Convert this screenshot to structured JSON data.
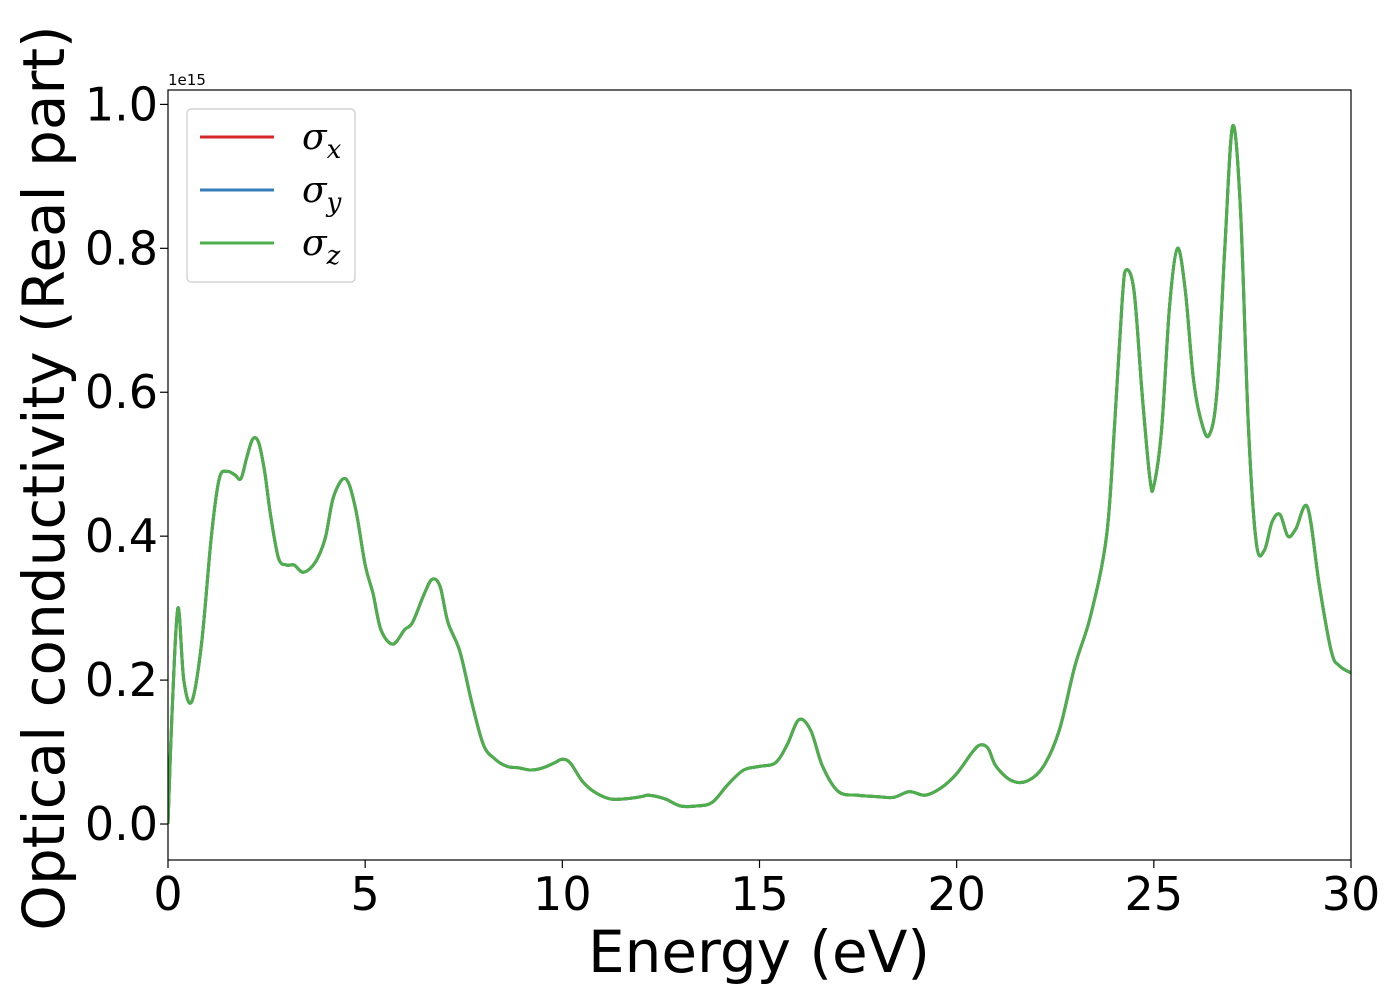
{
  "chart_data": {
    "type": "line",
    "xlabel": "Energy (eV)",
    "ylabel": "Optical conductivity (Real part)",
    "y_offset_label": "1e15",
    "xlim": [
      0,
      30
    ],
    "ylim": [
      -0.05,
      1.02
    ],
    "y_scale_factor": 1000000000000000.0,
    "grid": false,
    "legend_placement": "top-left",
    "x_ticks": [
      0,
      5,
      10,
      15,
      20,
      25,
      30
    ],
    "x_tick_labels": [
      "0",
      "5",
      "10",
      "15",
      "20",
      "25",
      "30"
    ],
    "y_ticks": [
      0.0,
      0.2,
      0.4,
      0.6,
      0.8,
      1.0
    ],
    "y_tick_labels": [
      "0.0",
      "0.2",
      "0.4",
      "0.6",
      "0.8",
      "1.0"
    ],
    "series": [
      {
        "name": "σx",
        "symbol": "σ",
        "subscript": "x",
        "color": "#d62728"
      },
      {
        "name": "σy",
        "symbol": "σ",
        "subscript": "y",
        "color": "#377eb8"
      },
      {
        "name": "σz",
        "symbol": "σ",
        "subscript": "z",
        "color": "#4daf4a"
      }
    ],
    "x": [
      0,
      0.1,
      0.25,
      0.4,
      0.6,
      0.85,
      1.1,
      1.3,
      1.5,
      1.7,
      1.85,
      2.0,
      2.15,
      2.3,
      2.45,
      2.6,
      2.8,
      3.0,
      3.2,
      3.4,
      3.6,
      3.8,
      4.0,
      4.2,
      4.5,
      4.75,
      5.0,
      5.2,
      5.4,
      5.7,
      6.0,
      6.2,
      6.5,
      6.7,
      6.9,
      7.1,
      7.4,
      7.7,
      8.0,
      8.3,
      8.6,
      8.9,
      9.2,
      9.5,
      9.8,
      10.0,
      10.2,
      10.5,
      10.8,
      11.2,
      11.6,
      12.0,
      12.2,
      12.6,
      13.0,
      13.4,
      13.8,
      14.2,
      14.6,
      15.0,
      15.4,
      15.7,
      16.0,
      16.3,
      16.6,
      17.0,
      17.5,
      18.0,
      18.4,
      18.8,
      19.2,
      19.6,
      20.0,
      20.4,
      20.6,
      20.8,
      21.0,
      21.4,
      21.8,
      22.2,
      22.6,
      23.0,
      23.4,
      23.8,
      24.0,
      24.2,
      24.3,
      24.5,
      24.7,
      24.9,
      25.0,
      25.2,
      25.4,
      25.6,
      25.8,
      26.0,
      26.2,
      26.4,
      26.6,
      26.8,
      27.0,
      27.2,
      27.4,
      27.6,
      27.8,
      28.0,
      28.2,
      28.4,
      28.6,
      28.9,
      29.2,
      29.5,
      29.7,
      30.0
    ],
    "values": [
      0.0,
      0.15,
      0.3,
      0.2,
      0.17,
      0.25,
      0.4,
      0.48,
      0.49,
      0.485,
      0.48,
      0.51,
      0.535,
      0.53,
      0.49,
      0.43,
      0.37,
      0.36,
      0.36,
      0.35,
      0.355,
      0.37,
      0.4,
      0.455,
      0.48,
      0.44,
      0.36,
      0.32,
      0.27,
      0.25,
      0.27,
      0.28,
      0.32,
      0.34,
      0.33,
      0.28,
      0.24,
      0.17,
      0.11,
      0.09,
      0.08,
      0.078,
      0.075,
      0.078,
      0.085,
      0.09,
      0.085,
      0.06,
      0.045,
      0.035,
      0.035,
      0.038,
      0.04,
      0.035,
      0.025,
      0.025,
      0.03,
      0.055,
      0.075,
      0.08,
      0.085,
      0.11,
      0.145,
      0.13,
      0.08,
      0.045,
      0.04,
      0.038,
      0.037,
      0.045,
      0.04,
      0.05,
      0.07,
      0.1,
      0.11,
      0.105,
      0.08,
      0.06,
      0.06,
      0.08,
      0.13,
      0.22,
      0.29,
      0.4,
      0.55,
      0.73,
      0.77,
      0.74,
      0.6,
      0.48,
      0.47,
      0.55,
      0.72,
      0.8,
      0.74,
      0.62,
      0.56,
      0.54,
      0.6,
      0.8,
      0.97,
      0.85,
      0.55,
      0.39,
      0.38,
      0.42,
      0.43,
      0.4,
      0.41,
      0.44,
      0.33,
      0.24,
      0.22,
      0.21
    ]
  }
}
